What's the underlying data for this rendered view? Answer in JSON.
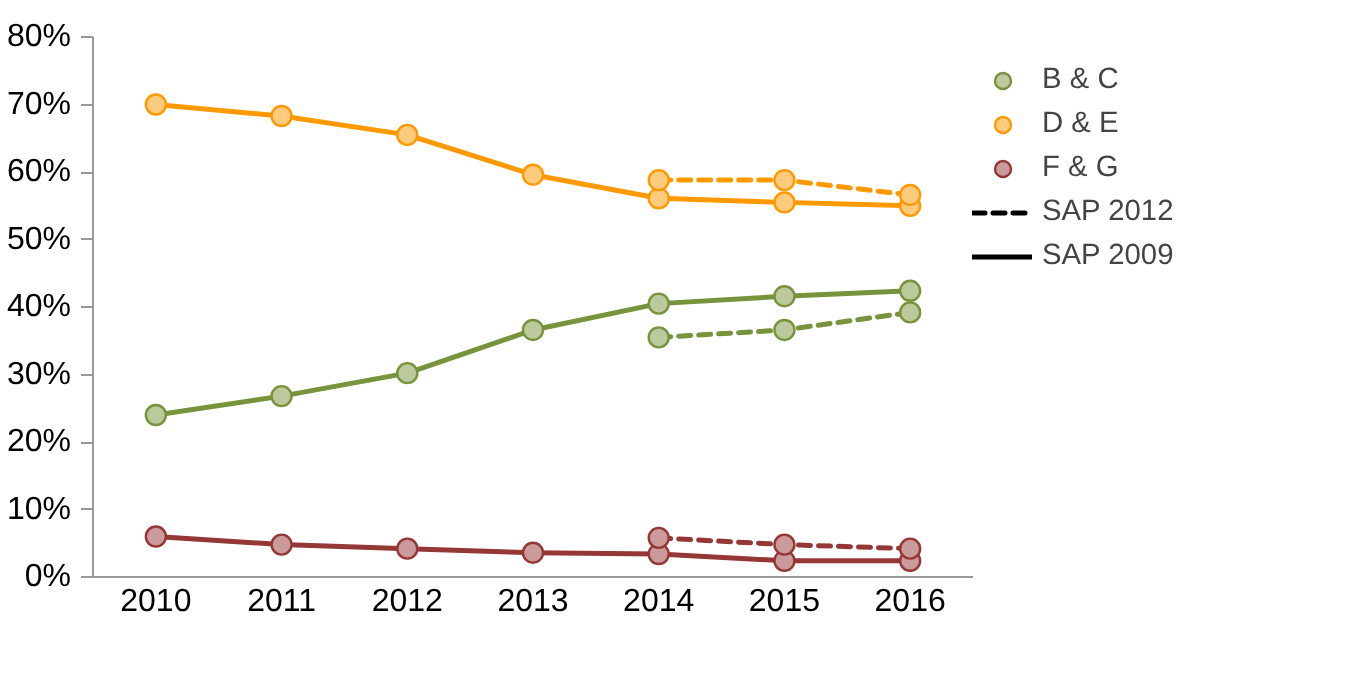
{
  "chart_data": {
    "type": "line",
    "categories": [
      "2010",
      "2011",
      "2012",
      "2013",
      "2014",
      "2015",
      "2016"
    ],
    "ylim": [
      0,
      80
    ],
    "yticks": [
      {
        "value": 0,
        "label": "0%"
      },
      {
        "value": 10,
        "label": "10%"
      },
      {
        "value": 20,
        "label": "20%"
      },
      {
        "value": 30,
        "label": "30%"
      },
      {
        "value": 40,
        "label": "40%"
      },
      {
        "value": 50,
        "label": "50%"
      },
      {
        "value": 60,
        "label": "60%"
      },
      {
        "value": 70,
        "label": "70%"
      },
      {
        "value": 80,
        "label": "80%"
      }
    ],
    "grid": false,
    "legend": "right",
    "marker": "circle",
    "series": [
      {
        "name": "B & C",
        "color": "#77933c",
        "line_style": "solid",
        "values": [
          24.0,
          26.8,
          30.2,
          36.6,
          40.5,
          41.6,
          42.4
        ]
      },
      {
        "name": "D & E",
        "color": "#ff9900",
        "line_style": "solid",
        "values": [
          70.0,
          68.3,
          65.5,
          59.6,
          56.1,
          55.5,
          55.0
        ]
      },
      {
        "name": "F & G",
        "color": "#953735",
        "line_style": "solid",
        "values": [
          6.0,
          4.8,
          4.2,
          3.6,
          3.4,
          2.4,
          2.4
        ]
      },
      {
        "color": "#77933c",
        "line_style": "dashed",
        "values": [
          null,
          null,
          null,
          null,
          35.5,
          36.6,
          39.2
        ]
      },
      {
        "color": "#ff9900",
        "line_style": "dashed",
        "values": [
          null,
          null,
          null,
          null,
          58.8,
          58.8,
          56.6
        ]
      },
      {
        "color": "#953735",
        "line_style": "dashed",
        "values": [
          null,
          null,
          null,
          null,
          5.8,
          4.8,
          4.2
        ]
      },
      {
        "name": "SAP 2012",
        "color": "#000000",
        "line_style": "dashed",
        "marker": "none",
        "values": [
          null,
          null,
          null,
          null,
          null,
          null,
          null
        ]
      },
      {
        "name": "SAP 2009",
        "color": "#000000",
        "line_style": "solid",
        "marker": "none",
        "values": [
          null,
          null,
          null,
          null,
          null,
          null,
          null
        ]
      }
    ]
  }
}
